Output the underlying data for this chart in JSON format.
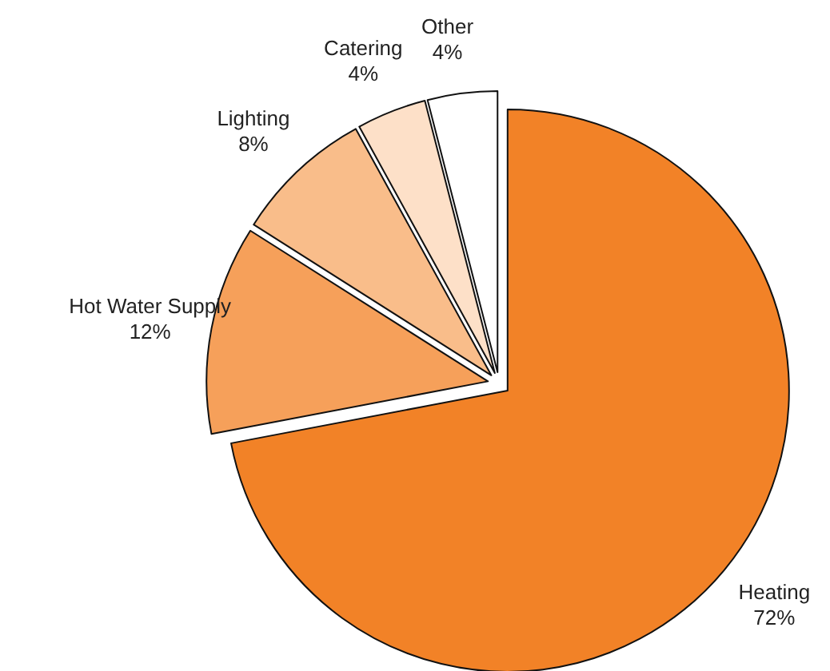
{
  "chart_data": {
    "type": "pie",
    "categories": [
      "Heating",
      "Hot Water Supply",
      "Lighting",
      "Catering",
      "Other"
    ],
    "values": [
      72,
      12,
      8,
      4,
      4
    ],
    "value_labels": [
      "72%",
      "12%",
      "8%",
      "4%",
      "4%"
    ],
    "colors": [
      "#f28227",
      "#f6a05a",
      "#f9bd8a",
      "#fde0c8",
      "#ffffff"
    ],
    "legend": false
  }
}
